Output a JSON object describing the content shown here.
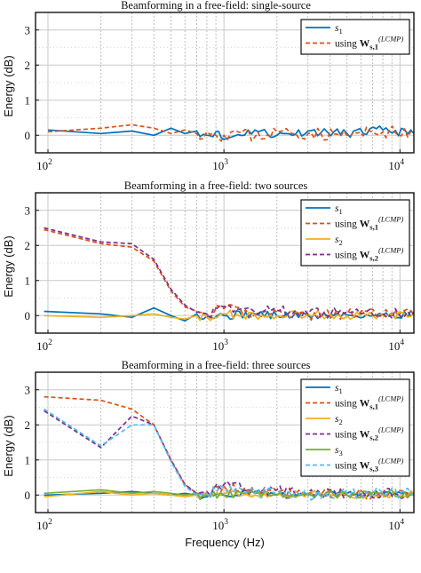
{
  "xlabel": "Frequency (Hz)",
  "colors": {
    "blue": "#0072BD",
    "orange": "#D95319",
    "yellow": "#EDB120",
    "purple": "#7E2F8E",
    "green": "#77AC30",
    "cyan": "#4DBEEE",
    "major_grid": "#c8c8c8",
    "minor_grid": "#b0b0b0"
  },
  "chart_data": [
    {
      "type": "line",
      "title": "Beamforming in a free-field: single-source",
      "ylabel": "Energy (dB)",
      "xscale": "log",
      "xlim": [
        85,
        12000
      ],
      "ylim": [
        -0.5,
        3.5
      ],
      "yticks": [
        0,
        1,
        2,
        3
      ],
      "xticks": [
        {
          "base": "10",
          "exp": "2"
        },
        {
          "base": "10",
          "exp": "3"
        },
        {
          "base": "10",
          "exp": "4"
        }
      ],
      "grid": true,
      "legend_position": "top-right",
      "series": [
        {
          "legend": [
            "s",
            "1",
            ""
          ],
          "color": "blue",
          "dash": false,
          "x": [
            100,
            200,
            300,
            400,
            500,
            600,
            700,
            800,
            900,
            1000,
            1200,
            1500,
            2000,
            3000,
            5000,
            8000,
            12000
          ],
          "y": [
            0.15,
            0.05,
            0.12,
            0.0,
            0.2,
            0.05,
            0.12,
            0.0,
            0.1,
            -0.12,
            0.02,
            0.15,
            0.0,
            0.12,
            0.05,
            0.15,
            0.05
          ],
          "noise": {
            "from": 700,
            "amp": 0.12,
            "seed": 11
          }
        },
        {
          "legend": [
            "using W",
            "s,1",
            "(LCMP)"
          ],
          "color": "orange",
          "dash": true,
          "x": [
            100,
            200,
            300,
            400,
            500,
            600,
            700,
            800,
            900,
            1000,
            1200,
            1500,
            2000,
            3000,
            5000,
            8000,
            12000
          ],
          "y": [
            0.1,
            0.2,
            0.3,
            0.2,
            0.05,
            0.15,
            0.05,
            0.1,
            0.0,
            0.0,
            0.1,
            -0.05,
            0.1,
            0.05,
            0.0,
            0.1,
            0.05
          ],
          "noise": {
            "from": 700,
            "amp": 0.18,
            "seed": 23
          }
        }
      ]
    },
    {
      "type": "line",
      "title": "Beamforming in a free-field: two sources",
      "ylabel": "Energy (dB)",
      "xscale": "log",
      "xlim": [
        85,
        12000
      ],
      "ylim": [
        -0.5,
        3.5
      ],
      "yticks": [
        0,
        1,
        2,
        3
      ],
      "xticks": [
        {
          "base": "10",
          "exp": "2"
        },
        {
          "base": "10",
          "exp": "3"
        },
        {
          "base": "10",
          "exp": "4"
        }
      ],
      "grid": true,
      "legend_position": "top-right",
      "series": [
        {
          "legend": [
            "s",
            "1",
            ""
          ],
          "color": "blue",
          "dash": false,
          "x": [
            95,
            200,
            300,
            400,
            500,
            600,
            700,
            800,
            1000,
            1500,
            2000,
            3000,
            5000,
            8000,
            12000
          ],
          "y": [
            0.12,
            0.05,
            -0.05,
            0.22,
            0.0,
            -0.15,
            0.05,
            -0.02,
            0.0,
            0.05,
            0.0,
            0.0,
            0.02,
            0.0,
            0.05
          ],
          "noise": {
            "from": 700,
            "amp": 0.12,
            "seed": 31
          }
        },
        {
          "legend": [
            "using W",
            "s,1",
            "(LCMP)"
          ],
          "color": "orange",
          "dash": true,
          "x": [
            95,
            200,
            300,
            400,
            500,
            600,
            700,
            800,
            1000,
            1500,
            2000,
            3000,
            5000,
            8000,
            12000
          ],
          "y": [
            2.45,
            2.05,
            1.95,
            1.55,
            0.7,
            0.25,
            0.12,
            0.05,
            0.2,
            0.05,
            0.1,
            0.0,
            0.05,
            0.05,
            0.05
          ],
          "noise": {
            "from": 800,
            "amp": 0.15,
            "seed": 41
          }
        },
        {
          "legend": [
            "s",
            "2",
            ""
          ],
          "color": "yellow",
          "dash": false,
          "x": [
            95,
            200,
            300,
            400,
            500,
            600,
            700,
            800,
            1000,
            1500,
            2000,
            3000,
            5000,
            8000,
            12000
          ],
          "y": [
            0.0,
            -0.05,
            0.0,
            0.05,
            -0.05,
            -0.1,
            0.0,
            -0.05,
            0.05,
            0.0,
            0.0,
            0.05,
            0.0,
            0.0,
            0.05
          ],
          "noise": {
            "from": 700,
            "amp": 0.12,
            "seed": 53
          }
        },
        {
          "legend": [
            "using W",
            "s,2",
            "(LCMP)"
          ],
          "color": "purple",
          "dash": true,
          "x": [
            95,
            200,
            300,
            400,
            500,
            600,
            700,
            800,
            1000,
            1500,
            2000,
            3000,
            5000,
            8000,
            12000
          ],
          "y": [
            2.5,
            2.1,
            2.05,
            1.6,
            0.75,
            0.3,
            0.1,
            0.05,
            0.25,
            0.1,
            0.15,
            0.05,
            0.1,
            0.05,
            0.1
          ],
          "noise": {
            "from": 800,
            "amp": 0.15,
            "seed": 67
          }
        }
      ]
    },
    {
      "type": "line",
      "title": "Beamforming in a free-field: three sources",
      "ylabel": "Energy (dB)",
      "xscale": "log",
      "xlim": [
        85,
        12000
      ],
      "ylim": [
        -0.5,
        3.5
      ],
      "yticks": [
        0,
        1,
        2,
        3
      ],
      "xticks": [
        {
          "base": "10",
          "exp": "2"
        },
        {
          "base": "10",
          "exp": "3"
        },
        {
          "base": "10",
          "exp": "4"
        }
      ],
      "grid": true,
      "legend_position": "top-right",
      "series": [
        {
          "legend": [
            "s",
            "1",
            ""
          ],
          "color": "blue",
          "dash": false,
          "x": [
            95,
            200,
            300,
            400,
            500,
            600,
            700,
            800,
            1000,
            1500,
            2000,
            3000,
            5000,
            8000,
            12000
          ],
          "y": [
            0.0,
            0.05,
            0.1,
            0.05,
            0.0,
            0.05,
            0.0,
            -0.05,
            0.0,
            0.05,
            0.0,
            0.0,
            0.05,
            0.0,
            0.05
          ],
          "noise": {
            "from": 700,
            "amp": 0.1,
            "seed": 71
          }
        },
        {
          "legend": [
            "using W",
            "s,1",
            "(LCMP)"
          ],
          "color": "orange",
          "dash": true,
          "x": [
            95,
            200,
            300,
            400,
            500,
            600,
            700,
            800,
            1000,
            1500,
            2000,
            3000,
            5000,
            8000,
            12000
          ],
          "y": [
            2.8,
            2.7,
            2.45,
            2.0,
            1.0,
            0.3,
            0.05,
            0.05,
            0.25,
            0.05,
            0.1,
            0.05,
            0.05,
            0.0,
            0.05
          ],
          "noise": {
            "from": 800,
            "amp": 0.15,
            "seed": 83
          }
        },
        {
          "legend": [
            "s",
            "2",
            ""
          ],
          "color": "yellow",
          "dash": false,
          "x": [
            95,
            200,
            300,
            400,
            500,
            600,
            700,
            800,
            1000,
            1500,
            2000,
            3000,
            5000,
            8000,
            12000
          ],
          "y": [
            -0.05,
            0.1,
            0.0,
            0.05,
            0.0,
            -0.05,
            0.0,
            0.0,
            0.05,
            0.0,
            0.0,
            0.05,
            0.0,
            0.0,
            0.05
          ],
          "noise": {
            "from": 700,
            "amp": 0.1,
            "seed": 97
          }
        },
        {
          "legend": [
            "using W",
            "s,2",
            "(LCMP)"
          ],
          "color": "purple",
          "dash": true,
          "x": [
            95,
            200,
            300,
            400,
            500,
            600,
            700,
            800,
            1000,
            1500,
            2000,
            3000,
            5000,
            8000,
            12000
          ],
          "y": [
            2.4,
            1.35,
            2.25,
            2.0,
            1.0,
            0.3,
            0.05,
            0.1,
            0.3,
            0.1,
            0.15,
            0.05,
            0.05,
            0.05,
            0.05
          ],
          "noise": {
            "from": 800,
            "amp": 0.15,
            "seed": 103
          }
        },
        {
          "legend": [
            "s",
            "3",
            ""
          ],
          "color": "green",
          "dash": false,
          "x": [
            95,
            200,
            300,
            400,
            500,
            600,
            700,
            800,
            1000,
            1500,
            2000,
            3000,
            5000,
            8000,
            12000
          ],
          "y": [
            0.05,
            0.15,
            0.05,
            0.1,
            0.05,
            0.0,
            0.05,
            0.0,
            0.0,
            0.05,
            0.0,
            0.05,
            0.0,
            0.05,
            0.0
          ],
          "noise": {
            "from": 700,
            "amp": 0.1,
            "seed": 109
          }
        },
        {
          "legend": [
            "using W",
            "s,3",
            "(LCMP)"
          ],
          "color": "cyan",
          "dash": true,
          "x": [
            95,
            200,
            300,
            400,
            500,
            600,
            700,
            800,
            1000,
            1500,
            2000,
            3000,
            5000,
            8000,
            12000
          ],
          "y": [
            2.45,
            1.4,
            2.0,
            2.0,
            0.95,
            0.25,
            0.0,
            0.05,
            0.2,
            0.05,
            0.1,
            0.0,
            0.05,
            0.05,
            0.05
          ],
          "noise": {
            "from": 800,
            "amp": 0.15,
            "seed": 113
          }
        }
      ]
    }
  ]
}
